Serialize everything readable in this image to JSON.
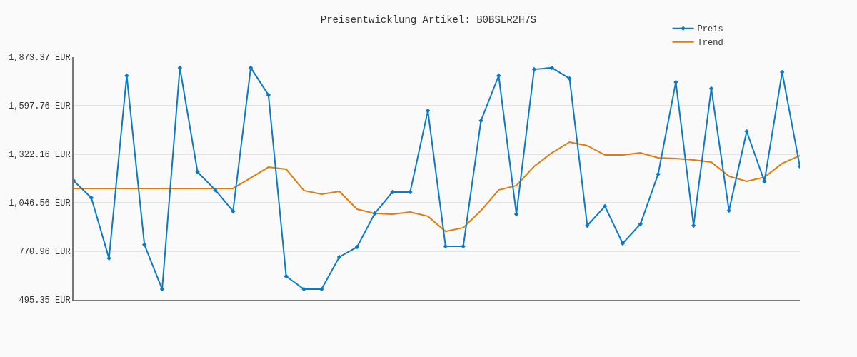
{
  "chart_data": {
    "type": "line",
    "title": "Preisentwicklung Artikel: B0BSLR2H7S",
    "categories": [
      null,
      null,
      null,
      null,
      null,
      null,
      null,
      null,
      null,
      null,
      null,
      null,
      null,
      null,
      null,
      null,
      null,
      null,
      null,
      null,
      null,
      null,
      null,
      null,
      null,
      null,
      null,
      null,
      null,
      null,
      null,
      null,
      null,
      null,
      null,
      null,
      null,
      null,
      null,
      null,
      null,
      null
    ],
    "series": [
      {
        "name": "Preis",
        "color": "#0a7ac8",
        "marker": "diamond",
        "values": [
          1172,
          1075,
          731,
          1768,
          808,
          556,
          1813,
          1221,
          1119,
          998,
          1813,
          1659,
          629,
          556,
          556,
          739,
          795,
          986,
          1107,
          1107,
          1569,
          799,
          799,
          1513,
          1768,
          982,
          1804,
          1813,
          1752,
          917,
          1026,
          816,
          925,
          1209,
          1732,
          917,
          1695,
          1002,
          1452,
          1168,
          1788,
          1253
        ]
      },
      {
        "name": "Trend",
        "color": "#e07b10",
        "marker": "none",
        "values": [
          1128,
          1128,
          1128,
          1128,
          1128,
          1128,
          1128,
          1128,
          1128,
          1128,
          1188,
          1249,
          1237,
          1116,
          1095,
          1111,
          1010,
          986,
          982,
          994,
          970,
          884,
          905,
          1002,
          1119,
          1144,
          1253,
          1330,
          1391,
          1371,
          1318,
          1318,
          1330,
          1302,
          1298,
          1290,
          1278,
          1197,
          1168,
          1192,
          1270,
          1314
        ]
      }
    ],
    "ylim": [
      495.35,
      1873.37
    ],
    "yticks": [
      {
        "value": 495.35,
        "label": "495.35 EUR"
      },
      {
        "value": 770.96,
        "label": "770.96 EUR"
      },
      {
        "value": 1046.56,
        "label": "1,046.56 EUR"
      },
      {
        "value": 1322.16,
        "label": "1,322.16 EUR"
      },
      {
        "value": 1597.76,
        "label": "1,597.76 EUR"
      },
      {
        "value": 1873.37,
        "label": "1,873.37 EUR"
      }
    ],
    "tick_labels": "y",
    "grid": "y",
    "legend": "top right",
    "line_style": "solid"
  }
}
